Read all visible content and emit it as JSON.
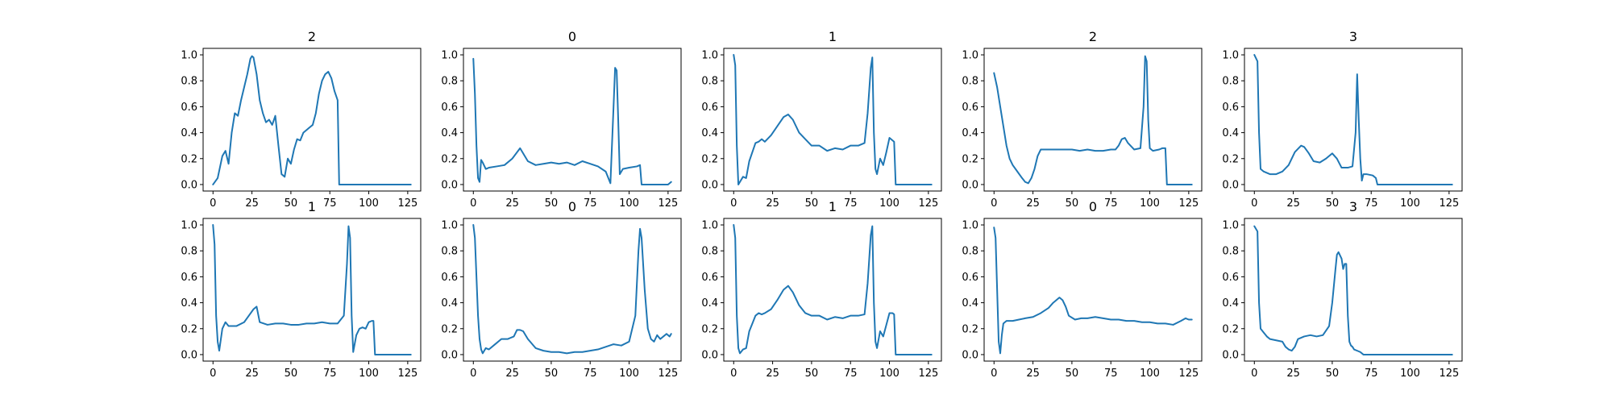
{
  "chart_data": [
    {
      "type": "line",
      "title": "2",
      "xlim": [
        0,
        127
      ],
      "ylim": [
        0,
        1
      ],
      "xticks": [
        0,
        25,
        50,
        75,
        100,
        125
      ],
      "yticks": [
        0,
        0.2,
        0.4,
        0.6,
        0.8,
        1.0
      ],
      "series": [
        {
          "x": [
            0,
            3,
            6,
            8,
            10,
            12,
            14,
            16,
            18,
            20,
            22,
            24,
            25,
            26,
            28,
            30,
            32,
            34,
            36,
            38,
            40,
            42,
            44,
            46,
            48,
            50,
            52,
            54,
            56,
            58,
            60,
            62,
            64,
            66,
            68,
            70,
            72,
            74,
            76,
            78,
            80,
            81,
            82,
            127
          ],
          "y": [
            0,
            0.05,
            0.22,
            0.26,
            0.16,
            0.4,
            0.55,
            0.53,
            0.65,
            0.75,
            0.85,
            0.97,
            0.99,
            0.98,
            0.85,
            0.65,
            0.55,
            0.48,
            0.5,
            0.46,
            0.53,
            0.3,
            0.08,
            0.06,
            0.2,
            0.16,
            0.27,
            0.35,
            0.34,
            0.4,
            0.42,
            0.44,
            0.46,
            0.55,
            0.7,
            0.8,
            0.85,
            0.87,
            0.82,
            0.72,
            0.65,
            0.0,
            0.0,
            0.0
          ]
        }
      ]
    },
    {
      "type": "line",
      "title": "0",
      "xlim": [
        0,
        127
      ],
      "ylim": [
        0,
        1
      ],
      "xticks": [
        0,
        25,
        50,
        75,
        100,
        125
      ],
      "yticks": [
        0,
        0.2,
        0.4,
        0.6,
        0.8,
        1.0
      ],
      "series": [
        {
          "x": [
            0,
            1,
            2,
            3,
            4,
            5,
            6,
            8,
            10,
            15,
            20,
            25,
            30,
            35,
            40,
            45,
            50,
            55,
            60,
            65,
            70,
            75,
            80,
            85,
            88,
            90,
            91,
            92,
            93,
            94,
            96,
            100,
            105,
            107,
            108,
            110,
            115,
            120,
            125,
            127
          ],
          "y": [
            0.97,
            0.7,
            0.3,
            0.05,
            0.02,
            0.19,
            0.17,
            0.12,
            0.13,
            0.14,
            0.15,
            0.2,
            0.28,
            0.18,
            0.15,
            0.16,
            0.17,
            0.16,
            0.17,
            0.15,
            0.18,
            0.16,
            0.14,
            0.1,
            0.01,
            0.6,
            0.9,
            0.88,
            0.5,
            0.08,
            0.12,
            0.13,
            0.14,
            0.15,
            0.0,
            0.0,
            0.0,
            0.0,
            0.0,
            0.02
          ]
        }
      ]
    },
    {
      "type": "line",
      "title": "1",
      "xlim": [
        0,
        127
      ],
      "ylim": [
        0,
        1
      ],
      "xticks": [
        0,
        25,
        50,
        75,
        100,
        125
      ],
      "yticks": [
        0,
        0.2,
        0.4,
        0.6,
        0.8,
        1.0
      ],
      "series": [
        {
          "x": [
            0,
            1,
            2,
            3,
            4,
            6,
            8,
            10,
            12,
            14,
            16,
            18,
            20,
            24,
            28,
            32,
            35,
            38,
            42,
            46,
            50,
            55,
            60,
            65,
            70,
            75,
            80,
            84,
            86,
            88,
            89,
            90,
            91,
            92,
            94,
            96,
            98,
            100,
            102,
            103,
            104,
            127
          ],
          "y": [
            1.0,
            0.92,
            0.3,
            0.0,
            0.02,
            0.06,
            0.05,
            0.18,
            0.25,
            0.32,
            0.33,
            0.35,
            0.33,
            0.38,
            0.45,
            0.52,
            0.54,
            0.5,
            0.4,
            0.35,
            0.3,
            0.3,
            0.26,
            0.28,
            0.27,
            0.3,
            0.3,
            0.32,
            0.55,
            0.9,
            0.98,
            0.4,
            0.12,
            0.08,
            0.2,
            0.15,
            0.25,
            0.36,
            0.34,
            0.33,
            0.0,
            0.0
          ]
        }
      ]
    },
    {
      "type": "line",
      "title": "2",
      "xlim": [
        0,
        127
      ],
      "ylim": [
        0,
        1
      ],
      "xticks": [
        0,
        25,
        50,
        75,
        100,
        125
      ],
      "yticks": [
        0,
        0.2,
        0.4,
        0.6,
        0.8,
        1.0
      ],
      "series": [
        {
          "x": [
            0,
            2,
            4,
            6,
            8,
            10,
            12,
            15,
            18,
            20,
            22,
            24,
            26,
            28,
            30,
            35,
            40,
            45,
            50,
            55,
            60,
            65,
            70,
            75,
            78,
            80,
            82,
            84,
            86,
            90,
            94,
            96,
            97,
            98,
            99,
            100,
            102,
            106,
            108,
            110,
            111,
            112,
            127
          ],
          "y": [
            0.86,
            0.75,
            0.6,
            0.45,
            0.3,
            0.2,
            0.15,
            0.1,
            0.05,
            0.02,
            0.01,
            0.05,
            0.12,
            0.22,
            0.27,
            0.27,
            0.27,
            0.27,
            0.27,
            0.26,
            0.27,
            0.26,
            0.26,
            0.27,
            0.27,
            0.3,
            0.35,
            0.36,
            0.32,
            0.27,
            0.28,
            0.6,
            0.99,
            0.95,
            0.5,
            0.28,
            0.26,
            0.27,
            0.28,
            0.28,
            0.0,
            0.0,
            0.0
          ]
        }
      ]
    },
    {
      "type": "line",
      "title": "3",
      "xlim": [
        0,
        127
      ],
      "ylim": [
        0,
        1
      ],
      "xticks": [
        0,
        25,
        50,
        75,
        100,
        125
      ],
      "yticks": [
        0,
        0.2,
        0.4,
        0.6,
        0.8,
        1.0
      ],
      "series": [
        {
          "x": [
            0,
            2,
            3,
            4,
            6,
            8,
            10,
            14,
            18,
            22,
            26,
            30,
            32,
            35,
            38,
            42,
            46,
            50,
            53,
            56,
            60,
            63,
            65,
            66,
            67,
            68,
            69,
            70,
            72,
            76,
            78,
            79,
            80,
            127
          ],
          "y": [
            1.0,
            0.95,
            0.4,
            0.12,
            0.1,
            0.09,
            0.08,
            0.08,
            0.1,
            0.15,
            0.25,
            0.3,
            0.29,
            0.24,
            0.18,
            0.17,
            0.2,
            0.24,
            0.2,
            0.13,
            0.13,
            0.14,
            0.4,
            0.85,
            0.5,
            0.2,
            0.03,
            0.08,
            0.08,
            0.07,
            0.05,
            0.0,
            0.0,
            0.0
          ]
        }
      ]
    },
    {
      "type": "line",
      "title": "1",
      "xlim": [
        0,
        127
      ],
      "ylim": [
        0,
        1
      ],
      "xticks": [
        0,
        25,
        50,
        75,
        100,
        125
      ],
      "yticks": [
        0,
        0.2,
        0.4,
        0.6,
        0.8,
        1.0
      ],
      "series": [
        {
          "x": [
            0,
            1,
            2,
            3,
            4,
            6,
            8,
            10,
            15,
            20,
            23,
            26,
            28,
            30,
            35,
            40,
            45,
            50,
            55,
            60,
            65,
            70,
            75,
            80,
            84,
            86,
            87,
            88,
            89,
            90,
            92,
            94,
            96,
            98,
            100,
            102,
            103,
            104,
            127
          ],
          "y": [
            1.0,
            0.85,
            0.3,
            0.1,
            0.03,
            0.2,
            0.25,
            0.22,
            0.22,
            0.25,
            0.3,
            0.35,
            0.37,
            0.25,
            0.23,
            0.24,
            0.24,
            0.23,
            0.23,
            0.24,
            0.24,
            0.25,
            0.24,
            0.24,
            0.3,
            0.7,
            0.99,
            0.9,
            0.3,
            0.02,
            0.15,
            0.2,
            0.21,
            0.2,
            0.25,
            0.26,
            0.26,
            0.0,
            0.0
          ]
        }
      ]
    },
    {
      "type": "line",
      "title": "0",
      "xlim": [
        0,
        127
      ],
      "ylim": [
        0,
        1
      ],
      "xticks": [
        0,
        25,
        50,
        75,
        100,
        125
      ],
      "yticks": [
        0,
        0.2,
        0.4,
        0.6,
        0.8,
        1.0
      ],
      "series": [
        {
          "x": [
            0,
            1,
            2,
            3,
            4,
            5,
            6,
            8,
            10,
            14,
            18,
            22,
            26,
            28,
            30,
            32,
            35,
            40,
            45,
            50,
            55,
            60,
            65,
            70,
            75,
            80,
            85,
            90,
            95,
            100,
            104,
            106,
            107,
            108,
            110,
            112,
            114,
            116,
            118,
            120,
            122,
            124,
            126,
            127
          ],
          "y": [
            1.0,
            0.9,
            0.6,
            0.3,
            0.12,
            0.04,
            0.01,
            0.05,
            0.04,
            0.08,
            0.12,
            0.12,
            0.14,
            0.19,
            0.19,
            0.18,
            0.12,
            0.05,
            0.03,
            0.02,
            0.02,
            0.01,
            0.02,
            0.02,
            0.03,
            0.04,
            0.06,
            0.08,
            0.07,
            0.1,
            0.3,
            0.8,
            0.97,
            0.9,
            0.5,
            0.2,
            0.12,
            0.1,
            0.15,
            0.12,
            0.14,
            0.16,
            0.14,
            0.16
          ]
        }
      ]
    },
    {
      "type": "line",
      "title": "1",
      "xlim": [
        0,
        127
      ],
      "ylim": [
        0,
        1
      ],
      "xticks": [
        0,
        25,
        50,
        75,
        100,
        125
      ],
      "yticks": [
        0,
        0.2,
        0.4,
        0.6,
        0.8,
        1.0
      ],
      "series": [
        {
          "x": [
            0,
            1,
            2,
            3,
            4,
            6,
            8,
            10,
            12,
            14,
            16,
            18,
            20,
            24,
            28,
            32,
            35,
            38,
            42,
            46,
            50,
            55,
            60,
            65,
            70,
            75,
            80,
            84,
            86,
            88,
            89,
            90,
            91,
            92,
            94,
            96,
            98,
            100,
            102,
            103,
            104,
            127
          ],
          "y": [
            1.0,
            0.9,
            0.3,
            0.05,
            0.01,
            0.04,
            0.05,
            0.18,
            0.24,
            0.3,
            0.32,
            0.31,
            0.32,
            0.35,
            0.42,
            0.5,
            0.53,
            0.48,
            0.38,
            0.32,
            0.3,
            0.3,
            0.27,
            0.29,
            0.28,
            0.3,
            0.3,
            0.31,
            0.55,
            0.92,
            0.99,
            0.4,
            0.1,
            0.05,
            0.18,
            0.14,
            0.23,
            0.32,
            0.32,
            0.31,
            0.0,
            0.0
          ]
        }
      ]
    },
    {
      "type": "line",
      "title": "0",
      "xlim": [
        0,
        127
      ],
      "ylim": [
        0,
        1
      ],
      "xticks": [
        0,
        25,
        50,
        75,
        100,
        125
      ],
      "yticks": [
        0,
        0.2,
        0.4,
        0.6,
        0.8,
        1.0
      ],
      "series": [
        {
          "x": [
            0,
            1,
            2,
            3,
            4,
            5,
            6,
            8,
            12,
            16,
            20,
            25,
            30,
            35,
            38,
            40,
            42,
            44,
            46,
            48,
            52,
            56,
            60,
            65,
            70,
            75,
            80,
            85,
            90,
            95,
            100,
            105,
            110,
            115,
            120,
            123,
            125,
            127
          ],
          "y": [
            0.98,
            0.9,
            0.5,
            0.1,
            0.01,
            0.15,
            0.24,
            0.26,
            0.26,
            0.27,
            0.28,
            0.29,
            0.32,
            0.36,
            0.4,
            0.42,
            0.44,
            0.42,
            0.37,
            0.3,
            0.27,
            0.28,
            0.28,
            0.29,
            0.28,
            0.27,
            0.27,
            0.26,
            0.26,
            0.25,
            0.25,
            0.24,
            0.24,
            0.23,
            0.26,
            0.28,
            0.27,
            0.27
          ]
        }
      ]
    },
    {
      "type": "line",
      "title": "3",
      "xlim": [
        0,
        127
      ],
      "ylim": [
        0,
        1
      ],
      "xticks": [
        0,
        25,
        50,
        75,
        100,
        125
      ],
      "yticks": [
        0,
        0.2,
        0.4,
        0.6,
        0.8,
        1.0
      ],
      "series": [
        {
          "x": [
            0,
            2,
            3,
            4,
            6,
            8,
            10,
            14,
            18,
            20,
            22,
            24,
            26,
            28,
            32,
            36,
            40,
            44,
            48,
            50,
            52,
            53,
            54,
            56,
            57,
            58,
            59,
            60,
            61,
            62,
            63,
            64,
            66,
            68,
            70,
            72,
            127
          ],
          "y": [
            0.99,
            0.95,
            0.4,
            0.2,
            0.17,
            0.14,
            0.12,
            0.11,
            0.1,
            0.06,
            0.04,
            0.03,
            0.06,
            0.12,
            0.14,
            0.15,
            0.14,
            0.15,
            0.22,
            0.4,
            0.65,
            0.77,
            0.79,
            0.74,
            0.66,
            0.7,
            0.7,
            0.3,
            0.1,
            0.07,
            0.06,
            0.04,
            0.03,
            0.02,
            0.0,
            0.0,
            0.0
          ]
        }
      ]
    }
  ],
  "colors": {
    "line": "#1f77b4",
    "axis": "#000000",
    "background": "#ffffff"
  }
}
